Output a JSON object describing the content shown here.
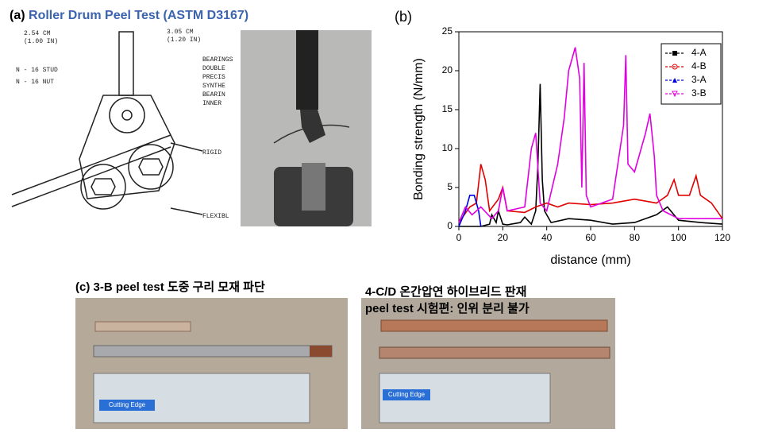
{
  "panel_a": {
    "label": "(a)",
    "title": "Roller Drum Peel Test (ASTM D3167)",
    "drawing_labels": [
      "2.54 CM",
      "(1.00 IN)",
      "3.05 CM",
      "(1.20 IN)",
      "N - 16 STUD",
      "N - 16 NUT",
      "BEARINGS",
      "DOUBLE",
      "PRECIS",
      "SYNTHE",
      "BEARIN",
      "INNER",
      "RIGID",
      "FLEXIBL"
    ]
  },
  "chart_data": {
    "type": "line",
    "panel_label": "(b)",
    "xlabel": "distance (mm)",
    "ylabel": "Bonding strength (N/mm)",
    "xlim": [
      0,
      120
    ],
    "xticks": [
      0,
      20,
      40,
      60,
      80,
      100,
      120
    ],
    "ylim": [
      0,
      25
    ],
    "yticks": [
      0,
      5,
      10,
      15,
      20,
      25
    ],
    "legend": "upper right",
    "series": [
      {
        "name": "4-A",
        "color": "#000000",
        "marker": "square",
        "x": [
          0,
          10,
          14,
          15,
          17,
          18,
          20,
          22,
          28,
          30,
          33,
          35,
          36,
          37,
          38,
          39,
          42,
          50,
          60,
          70,
          80,
          90,
          95,
          100,
          110,
          120
        ],
        "values": [
          0,
          0,
          0.3,
          1.5,
          0.5,
          2,
          0.3,
          0.2,
          0.5,
          1.2,
          0.3,
          2,
          8,
          18.3,
          6,
          2,
          0.5,
          1,
          0.8,
          0.3,
          0.5,
          1.5,
          2.5,
          0.8,
          0.5,
          0.3
        ]
      },
      {
        "name": "4-B",
        "color": "#e00000",
        "marker": "circle",
        "x": [
          0,
          5,
          8,
          10,
          12,
          14,
          18,
          20,
          22,
          30,
          35,
          40,
          45,
          50,
          60,
          70,
          80,
          90,
          95,
          98,
          100,
          105,
          108,
          110,
          115,
          120
        ],
        "values": [
          0.5,
          2.5,
          3,
          8,
          6,
          2,
          3.5,
          5,
          2,
          1.8,
          2.5,
          3,
          2.5,
          3,
          2.8,
          3,
          3.5,
          3,
          4,
          6,
          4,
          4,
          6.5,
          4,
          3,
          1
        ]
      },
      {
        "name": "3-A",
        "color": "#0000e0",
        "marker": "triangle-up",
        "x": [
          0,
          3,
          5,
          7,
          9,
          10
        ],
        "values": [
          0,
          2,
          4,
          4,
          2,
          0
        ]
      },
      {
        "name": "3-B",
        "color": "#e000e0",
        "marker": "triangle-down",
        "x": [
          0,
          3,
          6,
          10,
          15,
          18,
          20,
          22,
          30,
          33,
          35,
          37,
          40,
          45,
          48,
          50,
          53,
          55,
          56,
          57,
          58,
          60,
          65,
          70,
          75,
          76,
          77,
          80,
          85,
          87,
          89,
          90,
          93,
          100,
          110,
          120
        ],
        "values": [
          0.5,
          2.5,
          1.5,
          2.5,
          1,
          2,
          5,
          2,
          2.5,
          10,
          12,
          3,
          2,
          8,
          14,
          20,
          23,
          19,
          5,
          21,
          4,
          2.5,
          3,
          3.5,
          13,
          22,
          8,
          7,
          12,
          14.5,
          9,
          4,
          2,
          1,
          1,
          1
        ]
      }
    ]
  },
  "panel_c": {
    "caption": "(c) 3-B peel test 도중 구리 모재 파단",
    "ruler_text": "Cutting Edge"
  },
  "panel_d": {
    "caption_lines": [
      "4-C/D 온간압연 하이브리드 판재",
      "peel test 시험편: 인위 분리 불가"
    ],
    "ruler_text": "Cutting Edge"
  }
}
